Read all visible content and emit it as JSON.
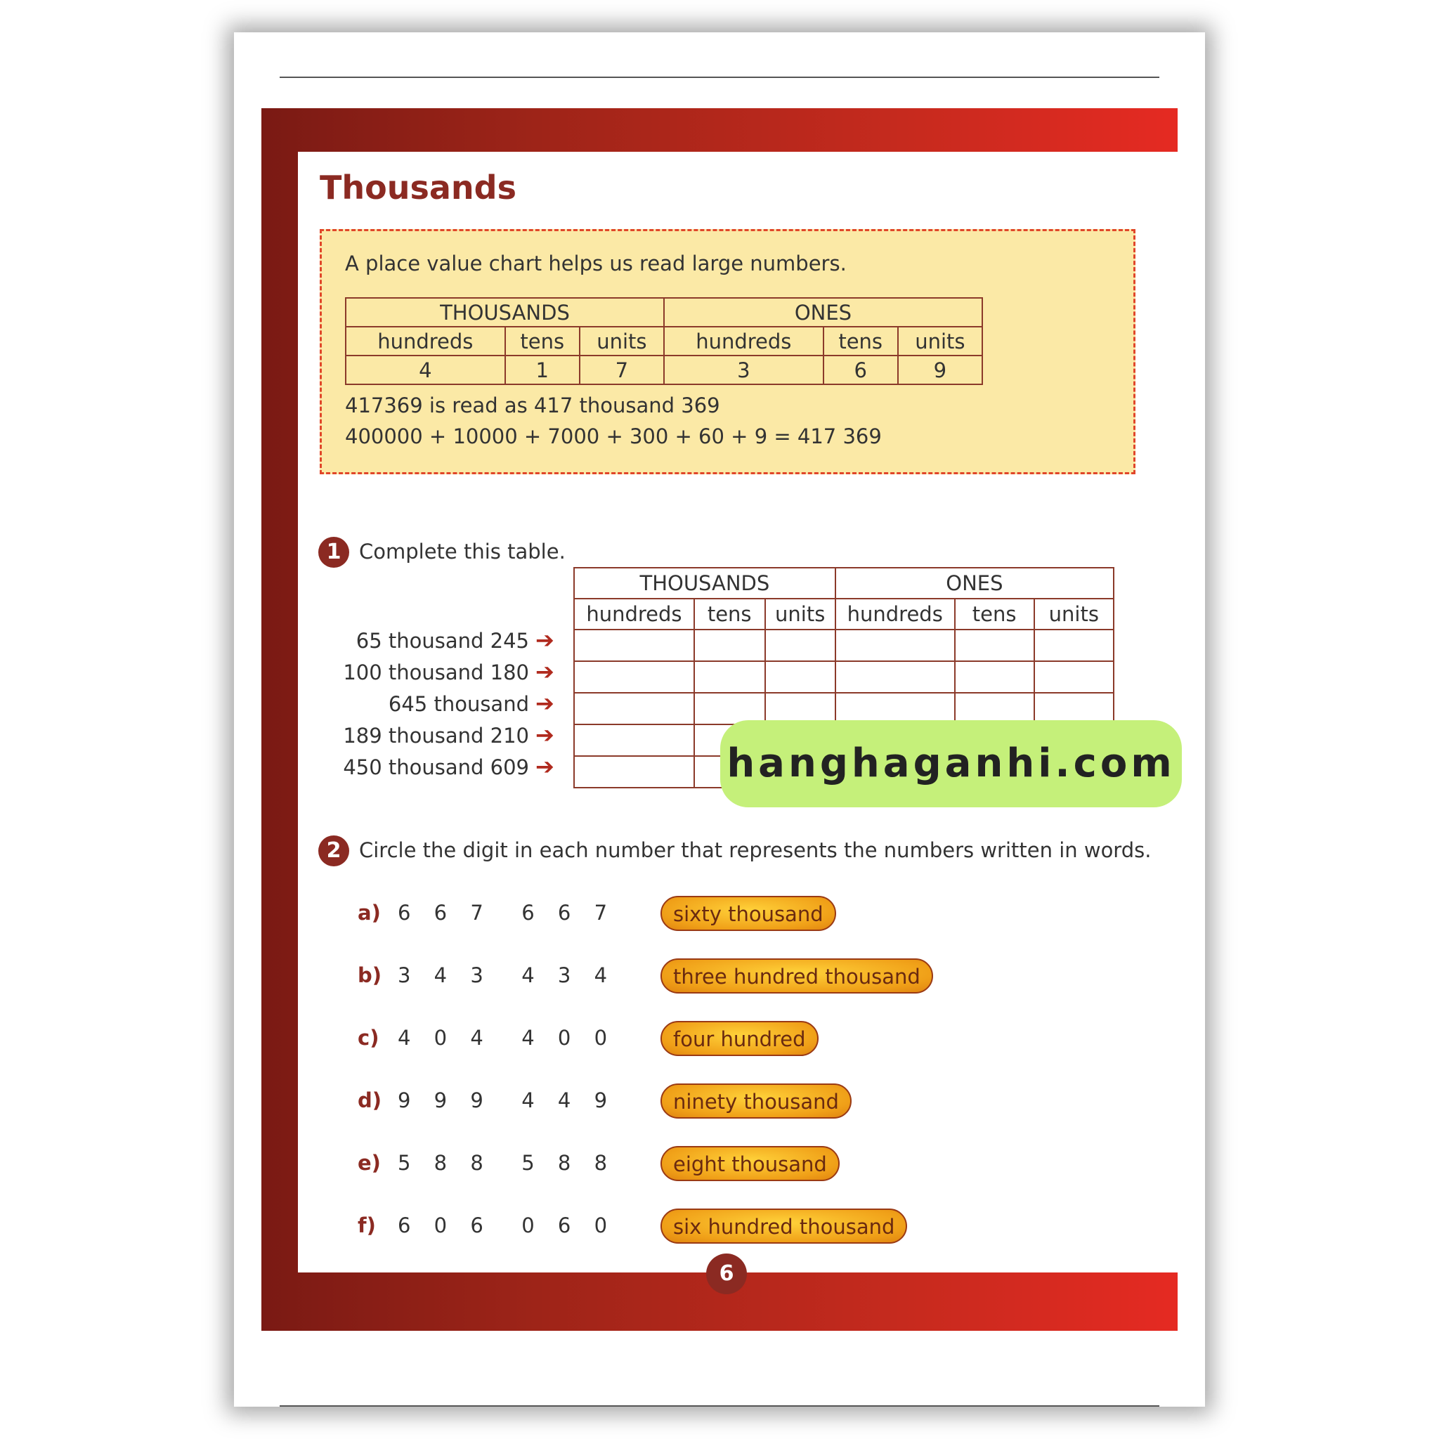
{
  "title": "Thousands",
  "info": {
    "intro": "A place value chart helps us read large numbers.",
    "groups": [
      "THOUSANDS",
      "ONES"
    ],
    "columns": [
      "hundreds",
      "tens",
      "units",
      "hundreds",
      "tens",
      "units"
    ],
    "digits": [
      "4",
      "1",
      "7",
      "3",
      "6",
      "9"
    ],
    "read_as": "417369 is read as 417 thousand 369",
    "expanded": "400000 + 10000 + 7000 + 300 + 60 + 9 = 417 369"
  },
  "q1": {
    "number": "1",
    "instruction": "Complete this table.",
    "groups": [
      "THOUSANDS",
      "ONES"
    ],
    "columns": [
      "hundreds",
      "tens",
      "units",
      "hundreds",
      "tens",
      "units"
    ],
    "rows": [
      "65 thousand 245",
      "100 thousand 180",
      "645 thousand",
      "189 thousand 210",
      "450 thousand 609"
    ],
    "arrow": "➔"
  },
  "watermark": "hanghaganhi.com",
  "q2": {
    "number": "2",
    "instruction": "Circle the digit in each number that represents the numbers written in words.",
    "items": [
      {
        "label": "a)",
        "number": "6 6 7  6 6 7",
        "words": "sixty thousand"
      },
      {
        "label": "b)",
        "number": "3 4 3  4 3 4",
        "words": "three hundred thousand"
      },
      {
        "label": "c)",
        "number": "4 0 4  4 0 0",
        "words": "four hundred"
      },
      {
        "label": "d)",
        "number": "9 9 9  4 4 9",
        "words": "ninety thousand"
      },
      {
        "label": "e)",
        "number": "5 8 8  5 8 8",
        "words": "eight thousand"
      },
      {
        "label": "f)",
        "number": "6 0 6  0 6 0",
        "words": "six hundred thousand"
      }
    ]
  },
  "page_number": "6",
  "colors": {
    "accent": "#8b2a22",
    "frame": "#c62a1e",
    "info_bg": "#fbe9a6",
    "pill": "#f0a018",
    "watermark_bg": "#c5f07a"
  }
}
